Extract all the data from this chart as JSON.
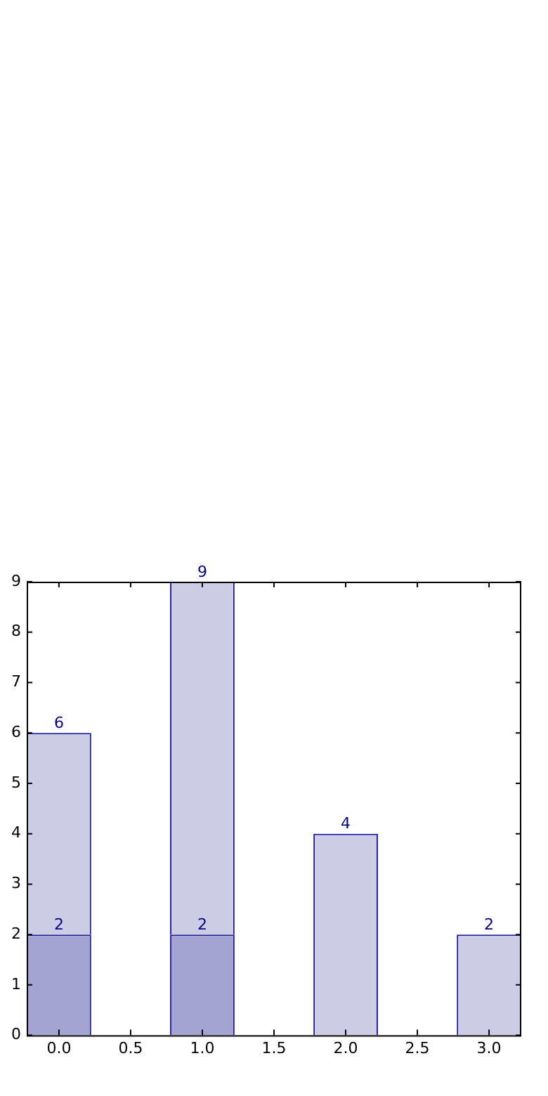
{
  "chart_data": {
    "type": "bar",
    "stacked": true,
    "series": [
      {
        "color": "#a3a3d1",
        "x": [
          0,
          1
        ],
        "values": [
          2,
          2
        ],
        "value_labels": [
          "2",
          "2"
        ]
      },
      {
        "color": "#cccce5",
        "x": [
          0,
          1,
          2,
          3
        ],
        "values": [
          4,
          7,
          4,
          2
        ]
      }
    ],
    "totals": [
      "6",
      "9",
      "4",
      "2"
    ],
    "xlim": [
      -0.225,
      3.225
    ],
    "xticks": [
      {
        "value": 0,
        "label": "0.0"
      },
      {
        "value": 0.5,
        "label": "0.5"
      },
      {
        "value": 1,
        "label": "1.0"
      },
      {
        "value": 1.5,
        "label": "1.5"
      },
      {
        "value": 2,
        "label": "2.0"
      },
      {
        "value": 2.5,
        "label": "2.5"
      },
      {
        "value": 3,
        "label": "3.0"
      }
    ],
    "ylim": [
      0,
      9
    ],
    "yticks": [
      0,
      1,
      2,
      3,
      4,
      5,
      6,
      7,
      8,
      9
    ]
  }
}
